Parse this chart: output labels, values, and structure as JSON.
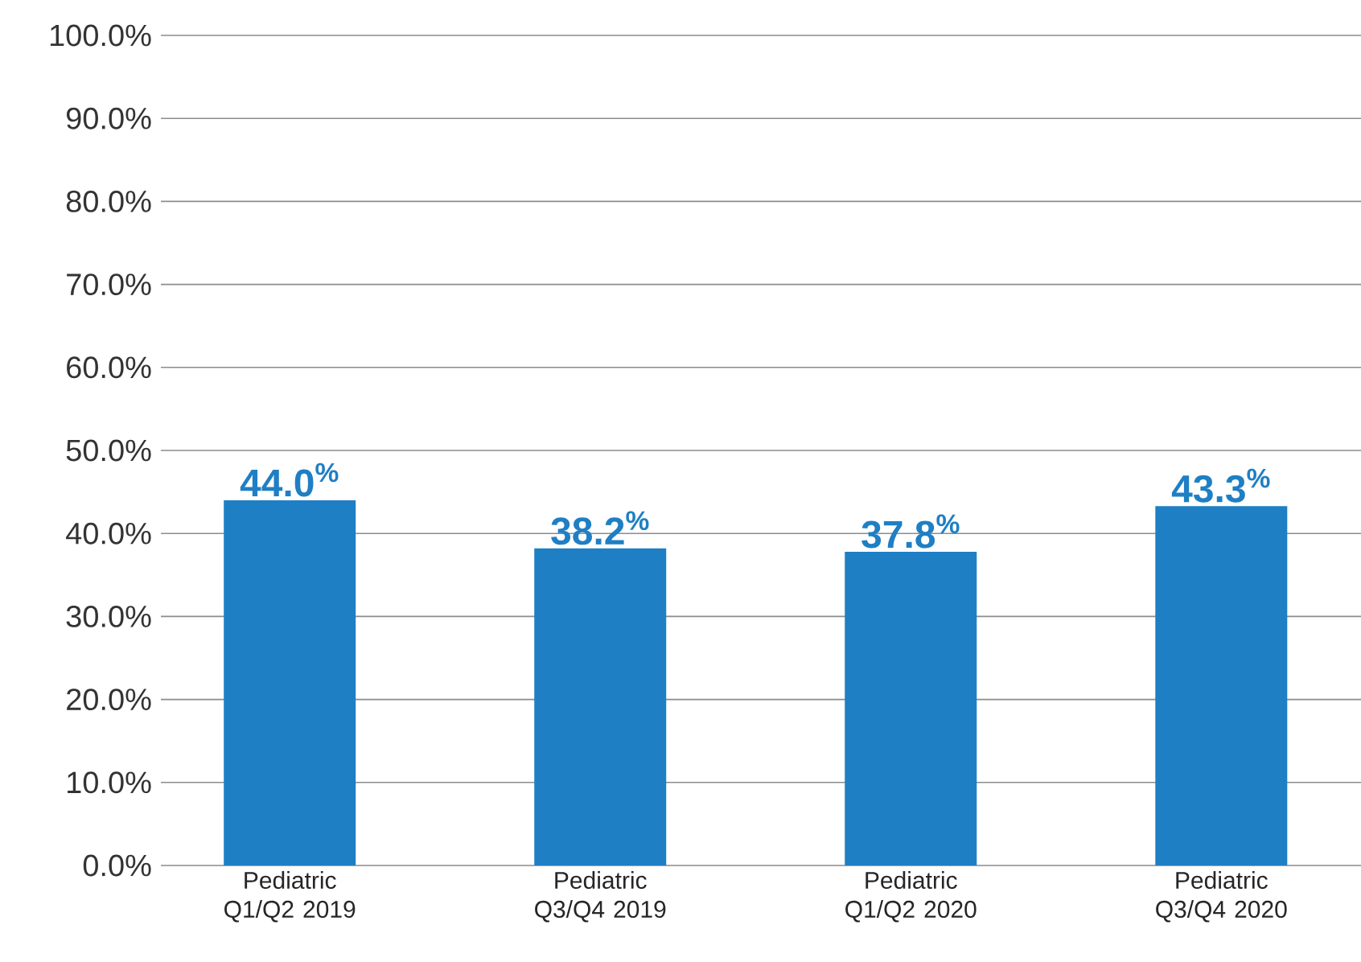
{
  "chart_data": {
    "type": "bar",
    "categories": [
      "Pediatric Q1/Q2 2019",
      "Pediatric Q3/Q4 2019",
      "Pediatric Q1/Q2 2020",
      "Pediatric Q3/Q4 2020"
    ],
    "values": [
      44.0,
      38.2,
      37.8,
      43.3
    ],
    "color": "#1f7fc4",
    "value_labels": [
      "44.0$^{%}$",
      "38.2$^{%}$",
      "37.8$^{%}$",
      "43.3$^{%}$"
    ],
    "ylim": [
      0,
      100
    ],
    "yticks": [
      {
        "value": 0,
        "label": "0.0%"
      },
      {
        "value": 10,
        "label": "10.0%"
      },
      {
        "value": 20,
        "label": "20.0%"
      },
      {
        "value": 30,
        "label": "30.0%"
      },
      {
        "value": 40,
        "label": "40.0%"
      },
      {
        "value": 50,
        "label": "50.0%"
      },
      {
        "value": 60,
        "label": "60.0%"
      },
      {
        "value": 70,
        "label": "70.0%"
      },
      {
        "value": 80,
        "label": "80.0%"
      },
      {
        "value": 90,
        "label": "90.0%"
      },
      {
        "value": 100,
        "label": "100.0%"
      }
    ],
    "grid": "y"
  }
}
